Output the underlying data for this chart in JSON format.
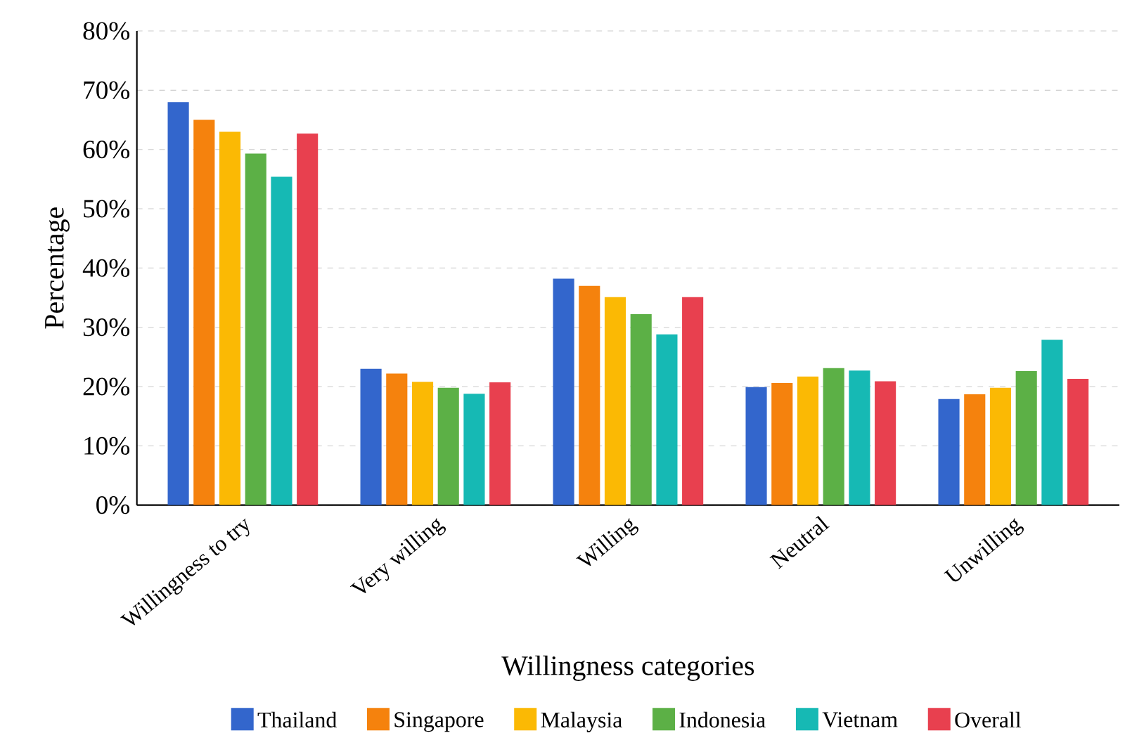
{
  "chart_data": {
    "type": "bar",
    "xlabel": "Willingness categories",
    "ylabel": "Percentage",
    "categories": [
      "Willingness to try",
      "Very willing",
      "Willing",
      "Neutral",
      "Unwilling"
    ],
    "series": [
      {
        "name": "Thailand",
        "color": "#3366cc",
        "values": [
          68,
          23,
          38.2,
          19.9,
          17.9
        ]
      },
      {
        "name": "Singapore",
        "color": "#f5820d",
        "values": [
          65,
          22.2,
          37,
          20.6,
          18.7
        ]
      },
      {
        "name": "Malaysia",
        "color": "#fbb904",
        "values": [
          63,
          20.8,
          35.1,
          21.7,
          19.8
        ]
      },
      {
        "name": "Indonesia",
        "color": "#5cb046",
        "values": [
          59.3,
          19.8,
          32.2,
          23.1,
          22.6
        ]
      },
      {
        "name": "Vietnam",
        "color": "#16b9b4",
        "values": [
          55.4,
          18.8,
          28.8,
          22.7,
          27.9
        ]
      },
      {
        "name": "Overall",
        "color": "#e8404f",
        "values": [
          62.7,
          20.7,
          35.1,
          20.9,
          21.3
        ]
      }
    ],
    "ylim": [
      0,
      80
    ],
    "yticks": [
      {
        "value": 0,
        "label": "0%"
      },
      {
        "value": 10,
        "label": "10%"
      },
      {
        "value": 20,
        "label": "20%"
      },
      {
        "value": 30,
        "label": "30%"
      },
      {
        "value": 40,
        "label": "40%"
      },
      {
        "value": 50,
        "label": "50%"
      },
      {
        "value": 60,
        "label": "60%"
      },
      {
        "value": 70,
        "label": "70%"
      },
      {
        "value": 80,
        "label": "80%"
      }
    ],
    "grid": "y",
    "legend": "bottom"
  }
}
